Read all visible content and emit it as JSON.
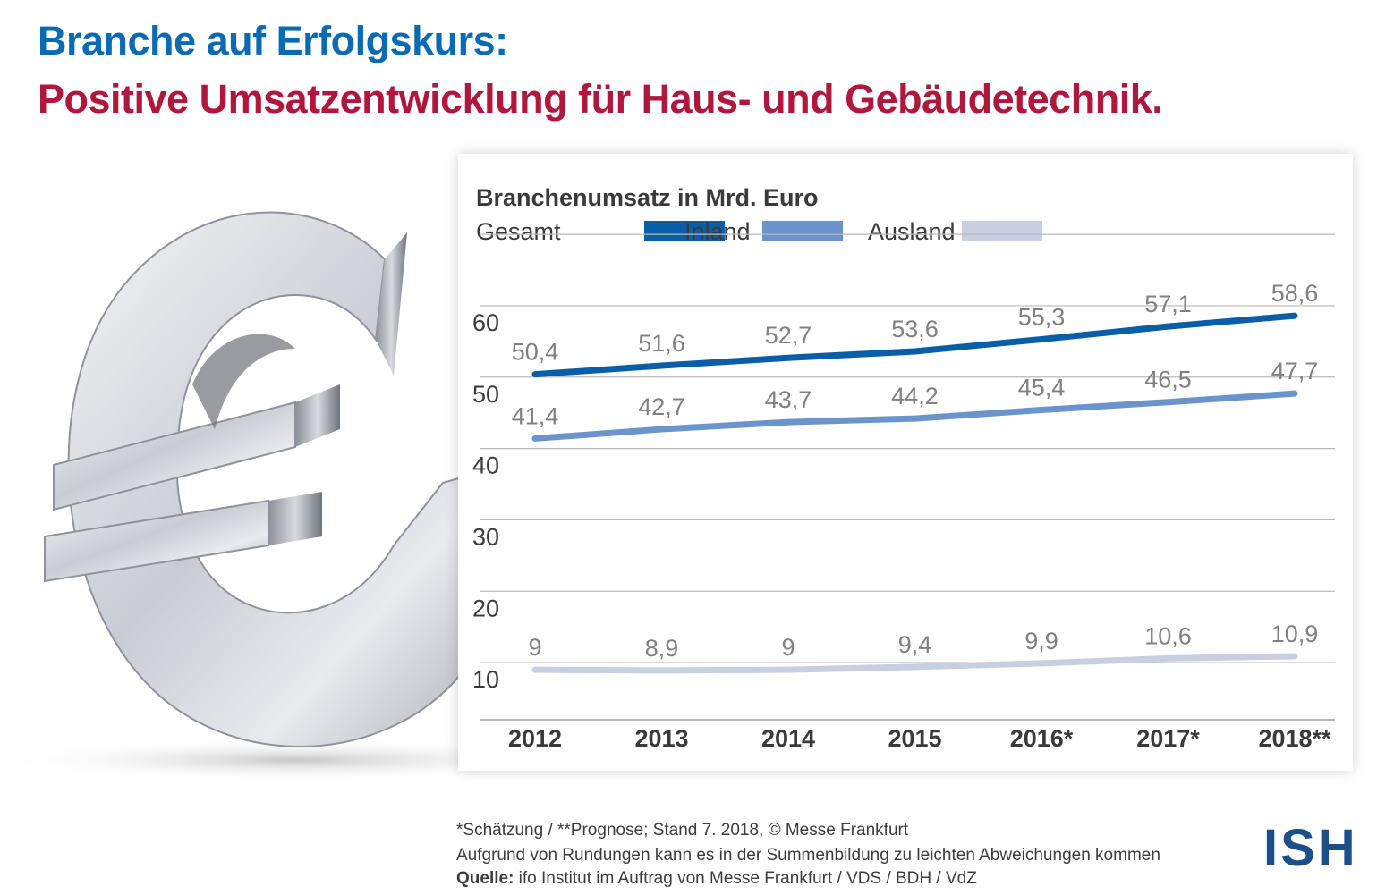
{
  "header": {
    "title_line1": "Branche auf Erfolgskurs:",
    "title_line2": "Positive Umsatzentwicklung für Haus- und Gebäudetechnik."
  },
  "colors": {
    "title_blue": "#0b6bb2",
    "title_red": "#b0173e",
    "gesamt": "#0a5ea8",
    "inland": "#6c94cc",
    "ausland": "#c8cfe0",
    "axis_text": "#3a3a3a",
    "value_text": "#808080",
    "logo": "#1c4f8a"
  },
  "chart_data": {
    "type": "line",
    "title": "Branchenumsatz in Mrd. Euro",
    "categories": [
      "2012",
      "2013",
      "2014",
      "2015",
      "2016*",
      "2017*",
      "2018**"
    ],
    "series": [
      {
        "name": "Gesamt",
        "values": [
          50.4,
          51.6,
          52.7,
          53.6,
          55.3,
          57.1,
          58.6
        ],
        "labels": [
          "50,4",
          "51,6",
          "52,7",
          "53,6",
          "55,3",
          "57,1",
          "58,6"
        ]
      },
      {
        "name": "Inland",
        "values": [
          41.4,
          42.7,
          43.7,
          44.2,
          45.4,
          46.5,
          47.7
        ],
        "labels": [
          "41,4",
          "42,7",
          "43,7",
          "44,2",
          "45,4",
          "46,5",
          "47,7"
        ]
      },
      {
        "name": "Ausland",
        "values": [
          9,
          8.9,
          9,
          9.4,
          9.9,
          10.6,
          10.9
        ],
        "labels": [
          "9",
          "8,9",
          "9",
          "9,4",
          "9,9",
          "10,6",
          "10,9"
        ]
      }
    ],
    "yticks": [
      "10",
      "20",
      "30",
      "40",
      "50",
      "60"
    ],
    "ylim": [
      2,
      64
    ],
    "grid": true,
    "legend_position": "top-left"
  },
  "footer": {
    "note1": "*Schätzung / **Prognose; Stand 7. 2018, © Messe Frankfurt",
    "note2": "Aufgrund von Rundungen kann es in der Summenbildung zu leichten Abweichungen kommen",
    "source_label": "Quelle:",
    "source_text": " ifo Institut im Auftrag von Messe Frankfurt / VDS / BDH / VdZ"
  },
  "logo": {
    "text": "ISH"
  }
}
